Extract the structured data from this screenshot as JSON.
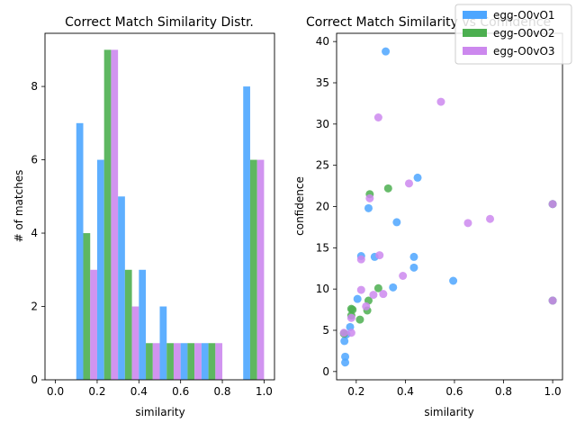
{
  "chart_data": [
    {
      "type": "bar",
      "title": "Correct Match Similarity Distr.",
      "xlabel": "similarity",
      "ylabel": "# of matches",
      "xlim": [
        -0.05,
        1.05
      ],
      "ylim": [
        0,
        9.45
      ],
      "xticks": [
        "0.0",
        "0.2",
        "0.4",
        "0.6",
        "0.8",
        "1.0"
      ],
      "yticks": [
        "0",
        "2",
        "4",
        "6",
        "8"
      ],
      "bin_edges": [
        0.0,
        0.1,
        0.2,
        0.3,
        0.4,
        0.5,
        0.6,
        0.7,
        0.8,
        0.9,
        1.0
      ],
      "series": [
        {
          "name": "egg-O0vO1",
          "color": "#4da6ff",
          "values": [
            0,
            7,
            6,
            5,
            3,
            2,
            1,
            1,
            0,
            8
          ]
        },
        {
          "name": "egg-O0vO2",
          "color": "#4caf50",
          "values": [
            0,
            4,
            9,
            3,
            1,
            1,
            1,
            1,
            0,
            6
          ]
        },
        {
          "name": "egg-O0vO3",
          "color": "#cc88ee",
          "values": [
            0,
            3,
            9,
            2,
            1,
            1,
            1,
            1,
            0,
            6
          ]
        }
      ],
      "grid": false
    },
    {
      "type": "scatter",
      "title": "Correct Match Similarity vs Confidence",
      "xlabel": "similarity",
      "ylabel": "confidence",
      "xlim": [
        0.12,
        1.04
      ],
      "ylim": [
        -1,
        41
      ],
      "xticks": [
        "0.2",
        "0.4",
        "0.6",
        "0.8",
        "1.0"
      ],
      "yticks": [
        "0",
        "5",
        "10",
        "15",
        "20",
        "25",
        "30",
        "35",
        "40"
      ],
      "legend_position": "top-right",
      "series": [
        {
          "name": "egg-O0vO1",
          "color": "#4da6ff",
          "points": [
            [
              0.155,
              1.1
            ],
            [
              0.155,
              1.8
            ],
            [
              0.152,
              3.7
            ],
            [
              0.16,
              4.5
            ],
            [
              0.175,
              5.4
            ],
            [
              0.205,
              8.8
            ],
            [
              0.22,
              14.0
            ],
            [
              0.25,
              19.8
            ],
            [
              0.275,
              13.9
            ],
            [
              0.32,
              38.8
            ],
            [
              0.35,
              10.2
            ],
            [
              0.365,
              18.1
            ],
            [
              0.435,
              13.9
            ],
            [
              0.435,
              12.6
            ],
            [
              0.45,
              23.5
            ],
            [
              0.595,
              11.0
            ],
            [
              1.0,
              20.3
            ],
            [
              1.0,
              8.6
            ]
          ]
        },
        {
          "name": "egg-O0vO2",
          "color": "#4caf50",
          "points": [
            [
              0.15,
              4.6
            ],
            [
              0.18,
              6.8
            ],
            [
              0.185,
              7.5
            ],
            [
              0.18,
              7.6
            ],
            [
              0.215,
              6.3
            ],
            [
              0.245,
              7.4
            ],
            [
              0.25,
              8.6
            ],
            [
              0.255,
              21.5
            ],
            [
              0.29,
              10.1
            ],
            [
              0.33,
              22.2
            ],
            [
              1.0,
              20.3
            ],
            [
              1.0,
              8.6
            ]
          ]
        },
        {
          "name": "egg-O0vO3",
          "color": "#cc88ee",
          "points": [
            [
              0.15,
              4.7
            ],
            [
              0.18,
              4.7
            ],
            [
              0.18,
              6.5
            ],
            [
              0.22,
              9.9
            ],
            [
              0.22,
              13.6
            ],
            [
              0.24,
              7.9
            ],
            [
              0.255,
              21.0
            ],
            [
              0.27,
              9.3
            ],
            [
              0.29,
              30.8
            ],
            [
              0.295,
              14.1
            ],
            [
              0.31,
              9.4
            ],
            [
              0.39,
              11.6
            ],
            [
              0.415,
              22.8
            ],
            [
              0.545,
              32.7
            ],
            [
              0.655,
              18.0
            ],
            [
              0.745,
              18.5
            ],
            [
              1.0,
              20.3
            ],
            [
              1.0,
              8.6
            ]
          ]
        }
      ],
      "grid": false
    }
  ]
}
